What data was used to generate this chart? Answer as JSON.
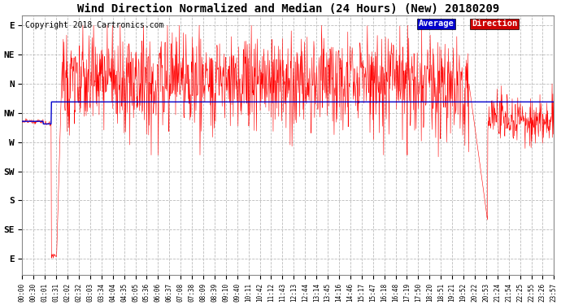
{
  "title": "Wind Direction Normalized and Median (24 Hours) (New) 20180209",
  "copyright": "Copyright 2018 Cartronics.com",
  "ytick_labels": [
    "E",
    "NE",
    "N",
    "NW",
    "W",
    "SW",
    "S",
    "SE",
    "E"
  ],
  "ytick_values": [
    0,
    45,
    90,
    135,
    180,
    225,
    270,
    315,
    360
  ],
  "ylim": [
    -15,
    385
  ],
  "background_color": "#ffffff",
  "grid_color": "#bbbbbb",
  "line_color_direction": "#ff0000",
  "line_color_average": "#0000cc",
  "legend_avg_bg": "#0000cc",
  "legend_dir_bg": "#cc0000",
  "legend_text_color": "#ffffff",
  "title_fontsize": 10,
  "copyright_fontsize": 7,
  "avg_value": 118
}
